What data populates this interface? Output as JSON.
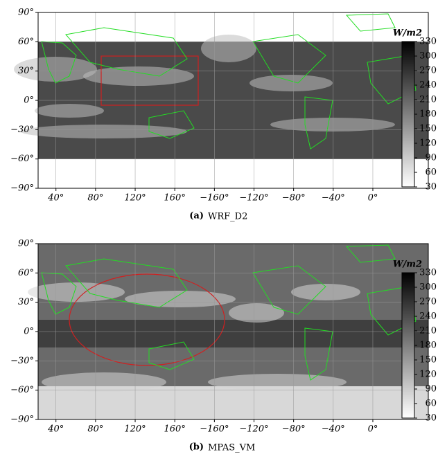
{
  "panels": [
    {
      "label": "(a)",
      "caption": "WRF_D2",
      "lat_lim": [
        -90,
        90
      ],
      "lon_lim": [
        22,
        416
      ],
      "lat_ticks": [
        {
          "value": 90,
          "label": "90°"
        },
        {
          "value": 60,
          "label": "60°"
        },
        {
          "value": 30,
          "label": "30°"
        },
        {
          "value": 0,
          "label": "0°"
        },
        {
          "value": -30,
          "label": "−30°"
        },
        {
          "value": -60,
          "label": "−60°"
        },
        {
          "value": -90,
          "label": "−90°"
        }
      ],
      "lon_ticks": [
        {
          "value": 40,
          "label": "40°"
        },
        {
          "value": 80,
          "label": "80°"
        },
        {
          "value": 120,
          "label": "120°"
        },
        {
          "value": 160,
          "label": "160°"
        },
        {
          "value": -160,
          "label": "−160°"
        },
        {
          "value": -120,
          "label": "−120°"
        },
        {
          "value": -80,
          "label": "−80°"
        },
        {
          "value": -40,
          "label": "−40°"
        },
        {
          "value": 0,
          "label": "0°"
        }
      ],
      "colorbar": {
        "unit": "W/m2",
        "lim": [
          30,
          330
        ],
        "ticks": [
          30,
          60,
          90,
          120,
          150,
          180,
          210,
          240,
          270,
          300,
          330
        ]
      }
    },
    {
      "label": "(b)",
      "caption": "MPAS_VM",
      "lat_lim": [
        -90,
        90
      ],
      "lon_lim": [
        22,
        416
      ],
      "lat_ticks": [
        {
          "value": 90,
          "label": "90°"
        },
        {
          "value": 60,
          "label": "60°"
        },
        {
          "value": 30,
          "label": "30°"
        },
        {
          "value": 0,
          "label": "0°"
        },
        {
          "value": -30,
          "label": "−30°"
        },
        {
          "value": -60,
          "label": "−60°"
        },
        {
          "value": -90,
          "label": "−90°"
        }
      ],
      "lon_ticks": [
        {
          "value": 40,
          "label": "40°"
        },
        {
          "value": 80,
          "label": "80°"
        },
        {
          "value": 120,
          "label": "120°"
        },
        {
          "value": 160,
          "label": "160°"
        },
        {
          "value": -160,
          "label": "−160°"
        },
        {
          "value": -120,
          "label": "−120°"
        },
        {
          "value": -80,
          "label": "−80°"
        },
        {
          "value": -40,
          "label": "−40°"
        },
        {
          "value": 0,
          "label": "0°"
        }
      ],
      "colorbar": {
        "unit": "W/m2",
        "lim": [
          30,
          330
        ],
        "ticks": [
          30,
          60,
          90,
          120,
          150,
          180,
          210,
          240,
          270,
          300,
          330
        ]
      }
    }
  ]
}
